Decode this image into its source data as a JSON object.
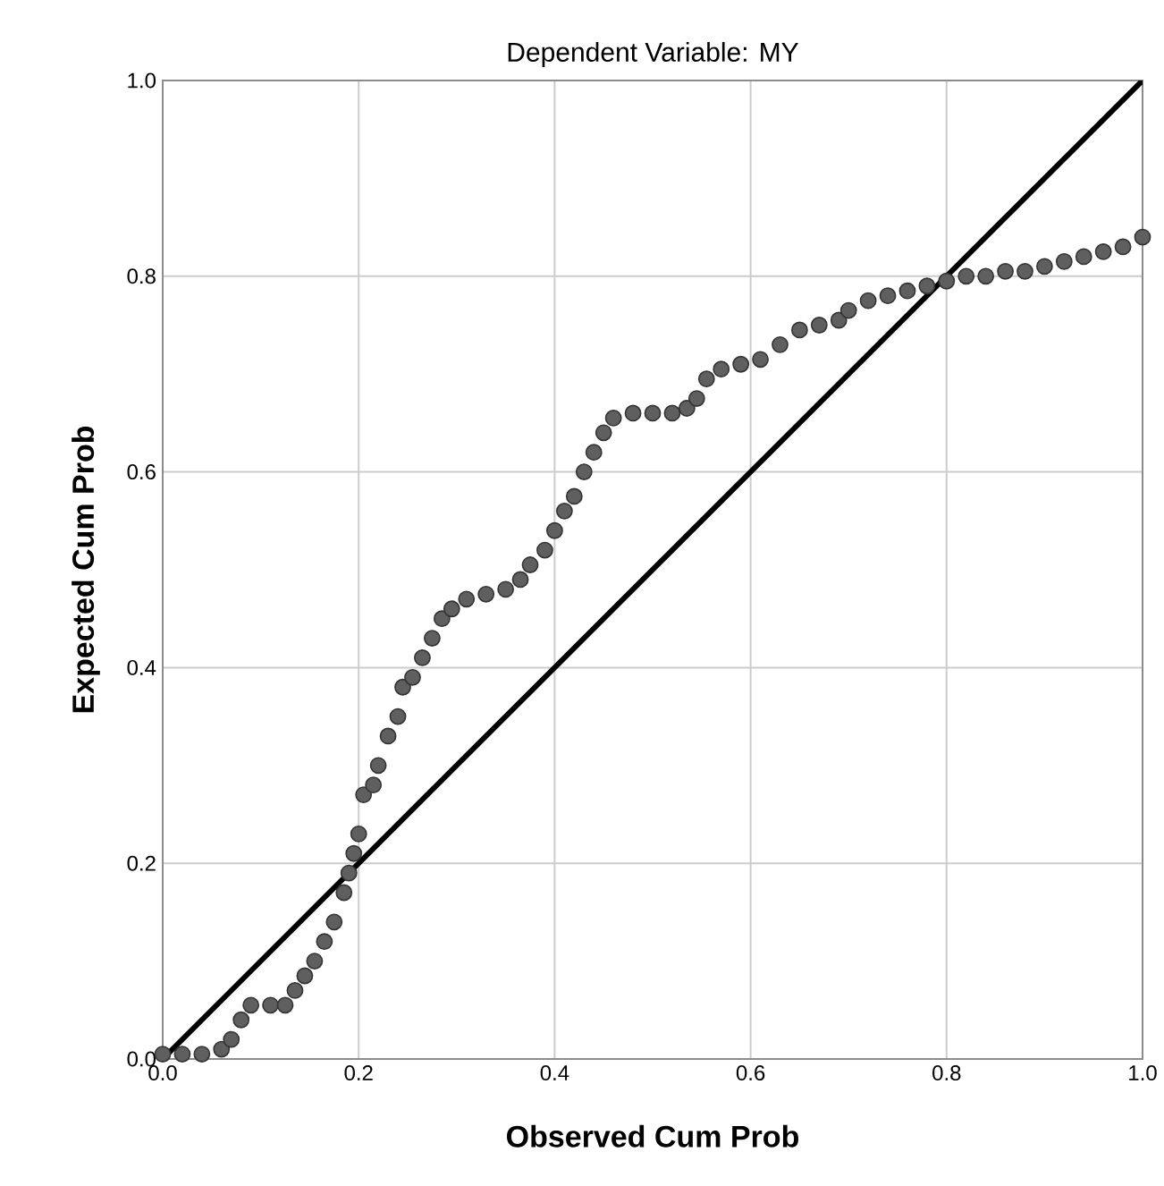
{
  "chart_data": {
    "type": "scatter",
    "title": "Dependent Variable: MY",
    "xlabel": "Observed Cum Prob",
    "ylabel": "Expected Cum Prob",
    "xlim": [
      0,
      1
    ],
    "ylim": [
      0,
      1
    ],
    "xticks": [
      {
        "value": 0,
        "label": "0.0"
      },
      0.2,
      0.4,
      0.6,
      0.8,
      {
        "value": 1,
        "label": "1.0"
      }
    ],
    "yticks": [
      {
        "value": 0,
        "label": "0.0"
      },
      0.2,
      0.4,
      0.6,
      0.8,
      {
        "value": 1,
        "label": "1.0"
      }
    ],
    "grid": true,
    "series": [
      {
        "marker": "circle",
        "color": "#5f5f5f",
        "x": [
          0.0,
          0.02,
          0.04,
          0.06,
          0.07,
          0.08,
          0.09,
          0.11,
          0.125,
          0.135,
          0.145,
          0.155,
          0.165,
          0.175,
          0.185,
          0.19,
          0.195,
          0.2,
          0.205,
          0.215,
          0.22,
          0.23,
          0.24,
          0.245,
          0.255,
          0.265,
          0.275,
          0.285,
          0.295,
          0.31,
          0.33,
          0.35,
          0.365,
          0.375,
          0.39,
          0.4,
          0.41,
          0.42,
          0.43,
          0.44,
          0.45,
          0.46,
          0.48,
          0.5,
          0.52,
          0.535,
          0.545,
          0.555,
          0.57,
          0.59,
          0.61,
          0.63,
          0.65,
          0.67,
          0.69,
          0.7,
          0.72,
          0.74,
          0.76,
          0.78,
          0.8,
          0.82,
          0.84,
          0.86,
          0.88,
          0.9,
          0.92,
          0.94,
          0.96,
          0.98,
          1.0
        ],
        "values": [
          0.005,
          0.005,
          0.005,
          0.01,
          0.02,
          0.04,
          0.055,
          0.055,
          0.055,
          0.07,
          0.085,
          0.1,
          0.12,
          0.14,
          0.17,
          0.19,
          0.21,
          0.23,
          0.27,
          0.28,
          0.3,
          0.33,
          0.35,
          0.38,
          0.39,
          0.41,
          0.43,
          0.45,
          0.46,
          0.47,
          0.475,
          0.48,
          0.49,
          0.505,
          0.52,
          0.54,
          0.56,
          0.575,
          0.6,
          0.62,
          0.64,
          0.655,
          0.66,
          0.66,
          0.66,
          0.665,
          0.675,
          0.695,
          0.705,
          0.71,
          0.715,
          0.73,
          0.745,
          0.75,
          0.755,
          0.765,
          0.775,
          0.78,
          0.785,
          0.79,
          0.795,
          0.8,
          0.8,
          0.805,
          0.805,
          0.81,
          0.815,
          0.82,
          0.825,
          0.83,
          0.84
        ]
      },
      {
        "type": "line",
        "marker": "none",
        "color": "#000000",
        "x": [
          0,
          1
        ],
        "values": [
          0,
          1
        ]
      }
    ]
  }
}
